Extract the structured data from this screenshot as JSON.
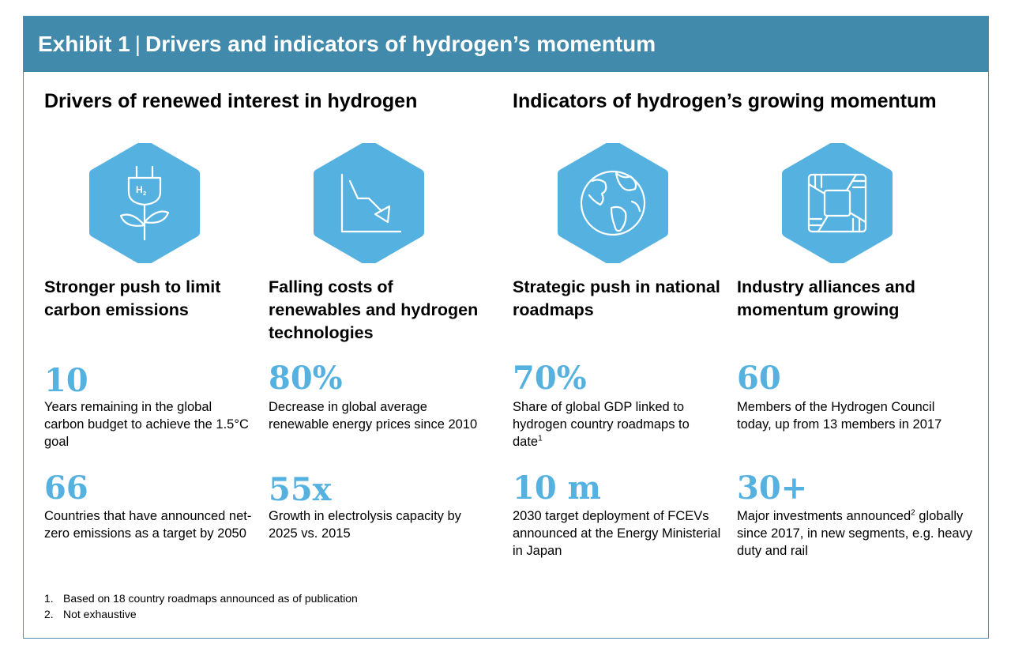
{
  "header": {
    "exhibit": "Exhibit 1",
    "separator": "|",
    "title": "Drivers and indicators of hydrogen’s momentum"
  },
  "sections": {
    "left": "Drivers of renewed interest in hydrogen",
    "right": "Indicators of hydrogen’s growing momentum"
  },
  "colors": {
    "banner": "#418aab",
    "hexagon": "#55b2e0",
    "accent_numbers": "#55b2e0"
  },
  "columns": [
    {
      "icon": "hydrogen-plug-plant-icon",
      "title": "Stronger push to limit carbon emissions",
      "stats": [
        {
          "value": "10",
          "desc": "Years remaining in the global carbon budget to achieve the 1.5°C goal"
        },
        {
          "value": "66",
          "desc": "Countries that have announced net-zero emissions as a target by 2050"
        }
      ]
    },
    {
      "icon": "falling-cost-chart-icon",
      "title": "Falling costs of renewables and hydrogen technologies",
      "stats": [
        {
          "value": "80%",
          "desc": "Decrease in global average renewable energy prices since 2010"
        },
        {
          "value": "55x",
          "desc": "Growth in electrolysis capacity by 2025 vs. 2015"
        }
      ]
    },
    {
      "icon": "globe-icon",
      "title": "Strategic push in national roadmaps",
      "stats": [
        {
          "value": "70%",
          "desc": "Share of global GDP linked to hydrogen country roadmaps to date",
          "sup": "1"
        },
        {
          "value": "10 m",
          "desc": "2030 target deployment of FCEVs announced at the Energy Ministerial in Japan"
        }
      ]
    },
    {
      "icon": "joined-hands-icon",
      "title": "Industry alliances and momentum growing",
      "stats": [
        {
          "value": "60",
          "desc": "Members of the Hydrogen Council today, up from 13 members in 2017"
        },
        {
          "value": "30+",
          "desc_a": "Major investments announced",
          "sup": "2",
          "desc_b": "globally since 2017, in new segments, e.g. heavy duty and rail"
        }
      ]
    }
  ],
  "footnotes": [
    {
      "num": "1.",
      "text": "Based on 18 country roadmaps announced as of publication"
    },
    {
      "num": "2.",
      "text": "Not exhaustive"
    }
  ]
}
